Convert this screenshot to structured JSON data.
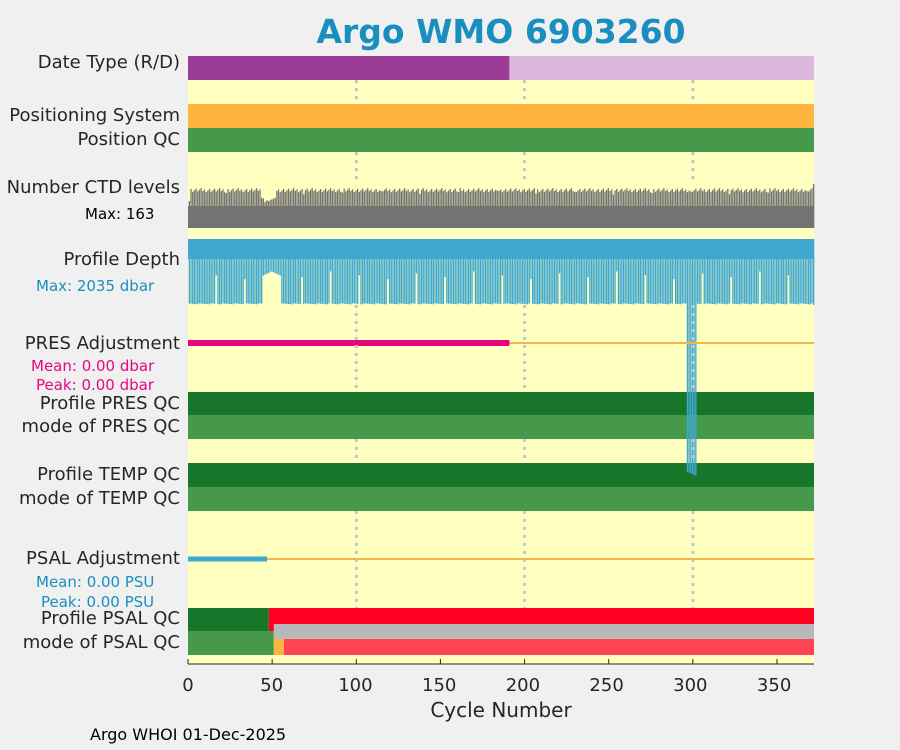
{
  "title": "Argo WMO 6903260",
  "footer": "Argo WHOI 01-Dec-2025",
  "colors": {
    "title": "#1a8fbf",
    "panel_bg": "#ffffc0",
    "delayed_mode": "#9b3d96",
    "realtime_mode": "#dcb8dc",
    "positioning_system": "#fdb53f",
    "qc_good": "#46994a",
    "qc_profile_A": "#17762a",
    "qc_bad": "#ff0022",
    "qc_bad_mode": "#ff4455",
    "qc_probably_good": "#fdb53f",
    "qc_missing": "#b8b8b8",
    "ctd_levels": "#737373",
    "profile_depth": "#3fa8d0",
    "pres_adjustment": "#e5077d",
    "psal_adjustment": "#3fa8d0",
    "adjustment_baseline": "#f5b54a"
  },
  "rows": {
    "date_type": {
      "label": "Date Type (R/D)"
    },
    "positioning_system": {
      "label": "Positioning System"
    },
    "position_qc": {
      "label": "Position QC"
    },
    "ctd_levels": {
      "label": "Number CTD levels",
      "max_text": "Max: 163"
    },
    "profile_depth": {
      "label": "Profile Depth",
      "max_text": "Max: 2035 dbar"
    },
    "pres_adjustment": {
      "label": "PRES Adjustment",
      "mean_text": "Mean: 0.00 dbar",
      "peak_text": "Peak: 0.00 dbar"
    },
    "profile_pres_qc": {
      "label": "Profile PRES QC"
    },
    "mode_pres_qc": {
      "label": "mode of PRES QC"
    },
    "profile_temp_qc": {
      "label": "Profile TEMP QC"
    },
    "mode_temp_qc": {
      "label": "mode of TEMP QC"
    },
    "psal_adjustment": {
      "label": "PSAL Adjustment",
      "mean_text": "Mean: 0.00 PSU",
      "peak_text": "Peak: 0.00 PSU"
    },
    "profile_psal_qc": {
      "label": "Profile PSAL QC"
    },
    "mode_psal_qc": {
      "label": "mode of PSAL QC"
    }
  },
  "chart_data": {
    "type": "bar",
    "title": "Argo WMO 6903260",
    "xlabel": "Cycle Number",
    "xlim": [
      0,
      372
    ],
    "xticks": [
      0,
      50,
      100,
      150,
      200,
      250,
      300,
      350
    ],
    "xtick_labels": [
      "0",
      "50",
      "100",
      "150",
      "200",
      "250",
      "300",
      "350"
    ],
    "gridlines_x": [
      100,
      200,
      300
    ],
    "series": [
      {
        "name": "Date Type (R/D)",
        "segments": [
          {
            "from": 0,
            "to": 191,
            "value": "D"
          },
          {
            "from": 191,
            "to": 372,
            "value": "R"
          }
        ]
      },
      {
        "name": "Positioning System",
        "segments": [
          {
            "from": 0,
            "to": 372,
            "value": "GPS"
          }
        ]
      },
      {
        "name": "Position QC",
        "segments": [
          {
            "from": 0,
            "to": 372,
            "value": "1"
          }
        ]
      },
      {
        "name": "Number CTD levels",
        "max": 163,
        "typical": 140,
        "min_seen": 100
      },
      {
        "name": "Profile Depth",
        "max_dbar": 2035,
        "typical_dbar": 2000,
        "shallow_dbar": 1000
      },
      {
        "name": "PRES Adjustment",
        "mean": 0.0,
        "peak": 0.0,
        "units": "dbar",
        "adjusted_to": 191
      },
      {
        "name": "Profile PRES QC",
        "segments": [
          {
            "from": 0,
            "to": 372,
            "value": "A"
          }
        ]
      },
      {
        "name": "mode of PRES QC",
        "segments": [
          {
            "from": 0,
            "to": 372,
            "value": "1"
          }
        ]
      },
      {
        "name": "Profile TEMP QC",
        "segments": [
          {
            "from": 0,
            "to": 372,
            "value": "A"
          }
        ]
      },
      {
        "name": "mode of TEMP QC",
        "segments": [
          {
            "from": 0,
            "to": 372,
            "value": "1"
          }
        ]
      },
      {
        "name": "PSAL Adjustment",
        "mean": 0.0,
        "peak": 0.0,
        "units": "PSU",
        "adjusted_to": 47
      },
      {
        "name": "Profile PSAL QC",
        "segments": [
          {
            "from": 0,
            "to": 48,
            "value": "A"
          },
          {
            "from": 48,
            "to": 372,
            "value": "F"
          }
        ]
      },
      {
        "name": "mode of PSAL QC",
        "segments": [
          {
            "from": 0,
            "to": 51,
            "value": "1"
          },
          {
            "from": 51,
            "to": 57,
            "value": "3"
          },
          {
            "from": 57,
            "to": 372,
            "value": "4"
          }
        ],
        "missing_overlay": {
          "from": 51,
          "to": 372
        }
      }
    ]
  }
}
